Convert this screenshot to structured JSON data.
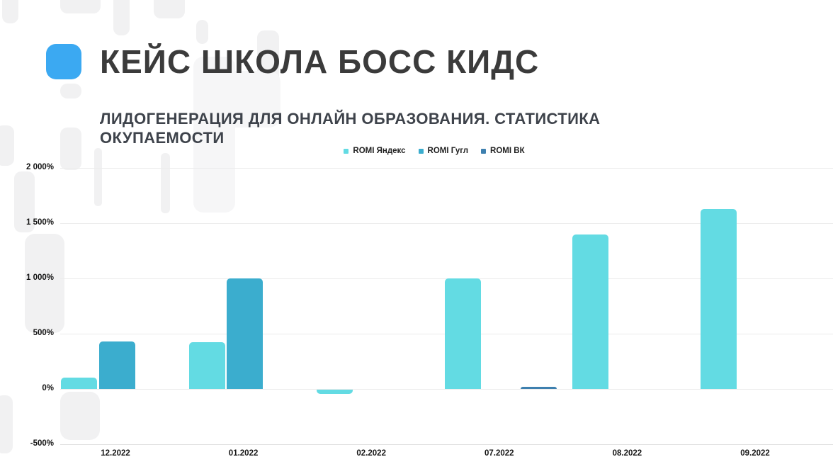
{
  "slide": {
    "title": "КЕЙС ШКОЛА БОСС КИДС",
    "subtitle": "ЛИДОГЕНЕРАЦИЯ ДЛЯ ОНЛАЙН ОБРАЗОВАНИЯ. СТАТИСТИКА ОКУПАЕМОСТИ",
    "accent_color": "#3ba9f2"
  },
  "chart_data": {
    "type": "bar",
    "title": "",
    "xlabel": "",
    "ylabel": "",
    "categories": [
      "12.2022",
      "01.2022",
      "02.2022",
      "07.2022",
      "08.2022",
      "09.2022"
    ],
    "series": [
      {
        "name": "ROMI Яндекс",
        "color": "#63dbe3",
        "values": [
          100,
          420,
          -40,
          1000,
          1400,
          1630
        ]
      },
      {
        "name": "ROMI Гугл",
        "color": "#3badce",
        "values": [
          430,
          1000,
          0,
          0,
          0,
          0
        ]
      },
      {
        "name": "ROMI ВК",
        "color": "#3e80af",
        "values": [
          0,
          0,
          0,
          20,
          0,
          0
        ]
      }
    ],
    "ylim": [
      -500,
      2000
    ],
    "ytick_step": 500,
    "ytick_labels": [
      "2 000%",
      "1 500%",
      "1 000%",
      "500%",
      "0%",
      "-500%"
    ],
    "grid": true,
    "legend_position": "top-center"
  }
}
